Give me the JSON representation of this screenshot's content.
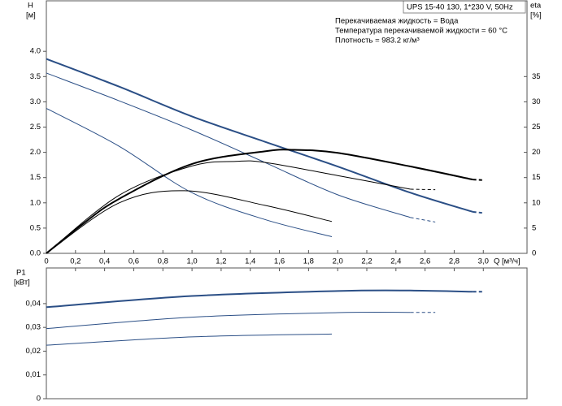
{
  "chart_data": [
    {
      "type": "line",
      "title": "UPS 15-40 130, 1*230 V, 50Hz",
      "annotations": [
        "Перекачиваемая жидкость = Вода",
        "Температура перекачиваемой жидкости = 60 °C",
        "Плотность = 983.2 кг/м³"
      ],
      "ylabel": [
        "H",
        "[м]"
      ],
      "y2label": [
        "eta",
        "[%]"
      ],
      "xlabel": "Q [м³/ч]",
      "xlim": [
        0,
        3.3
      ],
      "ylim": [
        0,
        5
      ],
      "y2lim": [
        0,
        50
      ],
      "xticks": [
        0,
        {
          "value": 0.2,
          "label": "0,2"
        },
        {
          "value": 0.4,
          "label": "0,4"
        },
        {
          "value": 0.6,
          "label": "0,6"
        },
        {
          "value": 0.8,
          "label": "0,8"
        },
        {
          "value": 1.0,
          "label": "1,0"
        },
        {
          "value": 1.2,
          "label": "1,2"
        },
        {
          "value": 1.4,
          "label": "1,4"
        },
        {
          "value": 1.6,
          "label": "1,6"
        },
        {
          "value": 1.8,
          "label": "1,8"
        },
        {
          "value": 2.0,
          "label": "2,0"
        },
        {
          "value": 2.2,
          "label": "2,2"
        },
        {
          "value": 2.4,
          "label": "2,4"
        },
        {
          "value": 2.6,
          "label": "2,6"
        },
        {
          "value": 2.8,
          "label": "2,8"
        },
        {
          "value": 3.0,
          "label": "3,0"
        }
      ],
      "yticks": [
        {
          "value": 0,
          "label": "0.0"
        },
        {
          "value": 0.5,
          "label": "0.5"
        },
        {
          "value": 1,
          "label": "1.0"
        },
        {
          "value": 1.5,
          "label": "1.5"
        },
        {
          "value": 2,
          "label": "2.0"
        },
        {
          "value": 2.5,
          "label": "2.5"
        },
        {
          "value": 3,
          "label": "3.0"
        },
        {
          "value": 3.5,
          "label": "3.5"
        },
        {
          "value": 4,
          "label": "4.0"
        }
      ],
      "y2ticks": [
        0,
        5,
        10,
        15,
        20,
        25,
        30,
        35
      ],
      "series": [
        {
          "color": "#2b4f86",
          "width": 2,
          "style": "solid",
          "x": [
            0,
            0.5,
            1.0,
            1.5,
            2.0,
            2.5,
            2.93
          ],
          "values": [
            3.85,
            3.3,
            2.71,
            2.21,
            1.72,
            1.2,
            0.82
          ]
        },
        {
          "color": "#2b4f86",
          "width": 2,
          "style": "dashed",
          "x": [
            2.93,
            3.0
          ],
          "values": [
            0.82,
            0.8
          ]
        },
        {
          "color": "#2b4f86",
          "width": 1,
          "style": "solid",
          "x": [
            0,
            0.5,
            1.0,
            1.5,
            2.0,
            2.5
          ],
          "values": [
            3.57,
            3.02,
            2.44,
            1.8,
            1.16,
            0.71
          ]
        },
        {
          "color": "#2b4f86",
          "width": 1,
          "style": "dashed",
          "x": [
            2.5,
            2.67
          ],
          "values": [
            0.71,
            0.62
          ]
        },
        {
          "color": "#2b4f86",
          "width": 1,
          "style": "solid",
          "x": [
            0,
            0.5,
            1.0,
            1.5,
            1.96
          ],
          "values": [
            2.87,
            2.12,
            1.2,
            0.67,
            0.33
          ]
        },
        {
          "color": "#000000",
          "width": 2,
          "style": "solid",
          "axis": "y2",
          "x": [
            0,
            0.25,
            0.5,
            1.0,
            1.5,
            1.7,
            2.0,
            2.5,
            2.93
          ],
          "values": [
            0,
            5.8,
            10.8,
            17.7,
            20.2,
            20.5,
            19.9,
            17.2,
            14.6
          ]
        },
        {
          "color": "#000000",
          "width": 2,
          "style": "dashed",
          "axis": "y2",
          "x": [
            2.93,
            3.0
          ],
          "values": [
            14.6,
            14.5
          ]
        },
        {
          "color": "#000000",
          "width": 1,
          "style": "solid",
          "axis": "y2",
          "x": [
            0,
            0.5,
            1.0,
            1.3,
            1.5,
            2.0,
            2.5
          ],
          "values": [
            0,
            11.5,
            17.3,
            18.2,
            18,
            15.4,
            12.7
          ]
        },
        {
          "color": "#000000",
          "width": 1,
          "style": "dashed",
          "axis": "y2",
          "x": [
            2.5,
            2.67
          ],
          "values": [
            12.7,
            12.6
          ]
        },
        {
          "color": "#000000",
          "width": 1,
          "style": "solid",
          "axis": "y2",
          "x": [
            0,
            0.5,
            0.95,
            1.5,
            1.96
          ],
          "values": [
            0,
            10,
            12.4,
            9.5,
            6.3
          ]
        }
      ]
    },
    {
      "type": "line",
      "ylabel": [
        "P1",
        "[кВт]"
      ],
      "xlim": [
        0,
        3.3
      ],
      "ylim": [
        0,
        0.055
      ],
      "yticks": [
        0,
        {
          "value": 0.01,
          "label": "0,01"
        },
        {
          "value": 0.02,
          "label": "0,02"
        },
        {
          "value": 0.03,
          "label": "0,03"
        },
        {
          "value": 0.04,
          "label": "0,04"
        }
      ],
      "series": [
        {
          "color": "#2b4f86",
          "width": 2,
          "style": "solid",
          "x": [
            0,
            1.0,
            2.0,
            2.5,
            2.93
          ],
          "values": [
            0.0385,
            0.0432,
            0.0453,
            0.0455,
            0.045
          ]
        },
        {
          "color": "#2b4f86",
          "width": 2,
          "style": "dashed",
          "x": [
            2.93,
            3.0
          ],
          "values": [
            0.045,
            0.045
          ]
        },
        {
          "color": "#2b4f86",
          "width": 1,
          "style": "solid",
          "x": [
            0,
            1.0,
            2.0,
            2.5
          ],
          "values": [
            0.0295,
            0.0343,
            0.0362,
            0.0363
          ]
        },
        {
          "color": "#2b4f86",
          "width": 1,
          "style": "dashed",
          "x": [
            2.5,
            2.67
          ],
          "values": [
            0.0363,
            0.0363
          ]
        },
        {
          "color": "#2b4f86",
          "width": 1,
          "style": "solid",
          "x": [
            0,
            1.0,
            1.96
          ],
          "values": [
            0.0225,
            0.026,
            0.0272
          ]
        }
      ]
    }
  ]
}
